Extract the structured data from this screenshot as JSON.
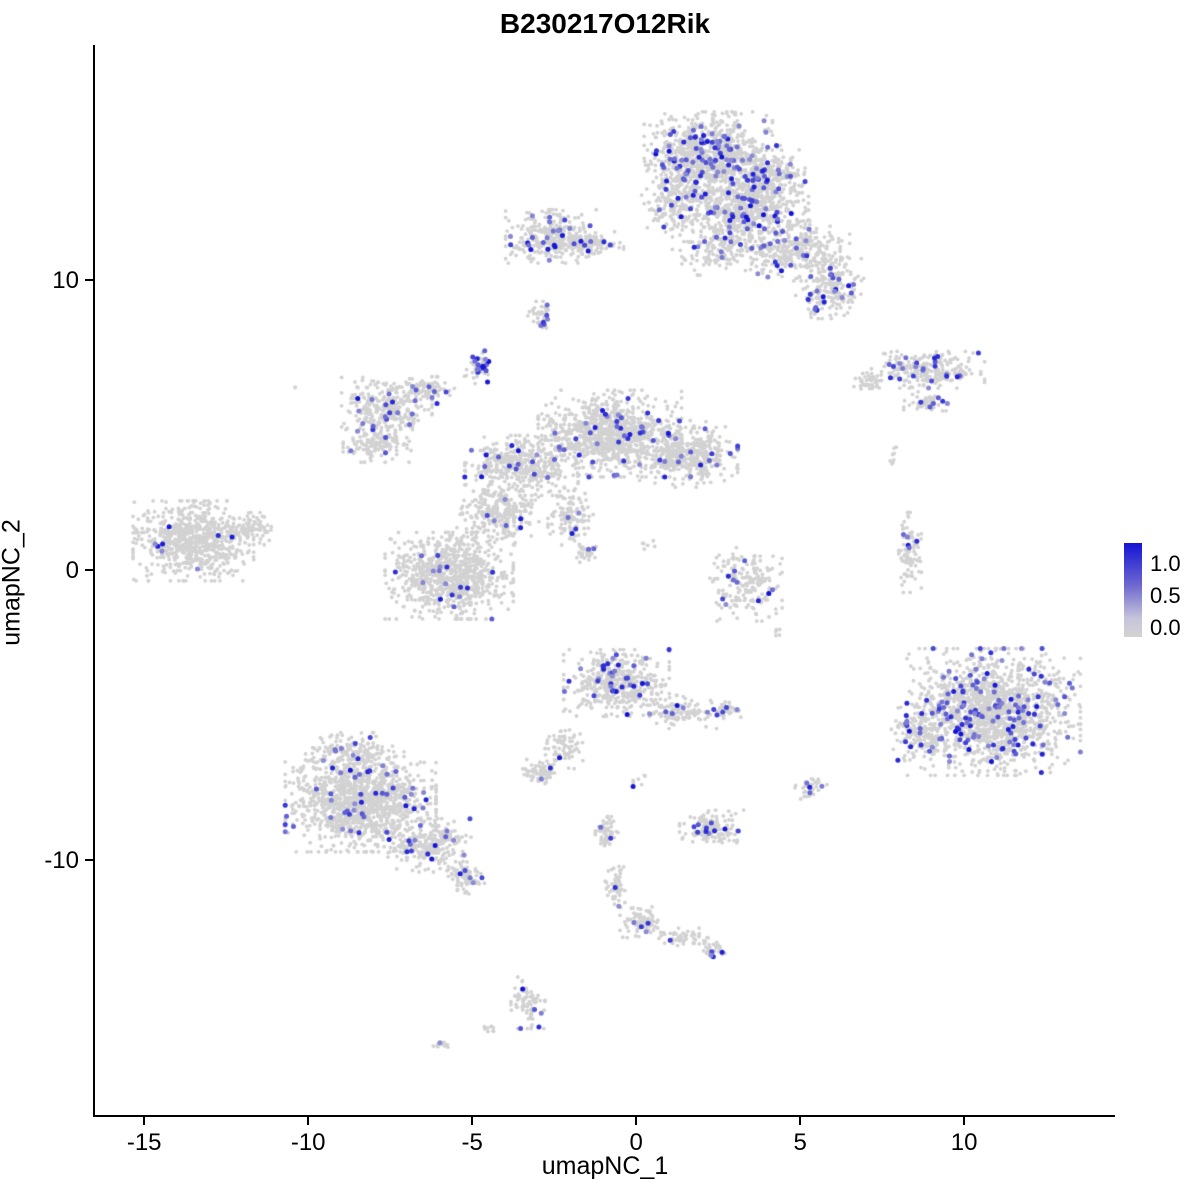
{
  "chart_data": {
    "type": "scatter",
    "title": "B230217O12Rik",
    "xlabel": "umapNC_1",
    "ylabel": "umapNC_2",
    "xlim": [
      -16.5,
      14.6
    ],
    "ylim": [
      -18.8,
      18.1
    ],
    "x_ticks": [
      -15,
      -10,
      -5,
      0,
      5,
      10
    ],
    "y_ticks": [
      -10,
      0,
      10
    ],
    "grid": false,
    "legend": {
      "position": "right",
      "ticks": [
        "1.0",
        "0.5",
        "0.0"
      ],
      "low_color": "#d3d3d3",
      "high_color": "#1010d6"
    },
    "point_color_low": "#d2d2d2",
    "point_color_high": "#1010d6",
    "clusters": [
      {
        "x": 2.2,
        "y": 14.3,
        "rx": 1.7,
        "ry": 1.3,
        "n": 850,
        "f": 0.1
      },
      {
        "x": 3.3,
        "y": 12.4,
        "rx": 1.7,
        "ry": 1.2,
        "n": 650,
        "f": 0.07
      },
      {
        "x": 1.2,
        "y": 12.8,
        "rx": 0.9,
        "ry": 1.0,
        "n": 220,
        "f": 0.04
      },
      {
        "x": 4.0,
        "y": 13.6,
        "rx": 1.0,
        "ry": 0.9,
        "n": 250,
        "f": 0.1
      },
      {
        "x": 4.9,
        "y": 11.0,
        "rx": 1.4,
        "ry": 0.9,
        "n": 320,
        "f": 0.06
      },
      {
        "x": 5.9,
        "y": 9.7,
        "rx": 0.9,
        "ry": 0.9,
        "n": 200,
        "f": 0.1
      },
      {
        "x": 2.6,
        "y": 10.9,
        "rx": 1.3,
        "ry": 0.8,
        "n": 130,
        "f": 0.05
      },
      {
        "x": -2.6,
        "y": 11.5,
        "rx": 1.2,
        "ry": 0.8,
        "n": 340,
        "f": 0.07
      },
      {
        "x": -1.3,
        "y": 11.2,
        "rx": 0.8,
        "ry": 0.4,
        "n": 90,
        "f": 0.05
      },
      {
        "x": -2.9,
        "y": 8.8,
        "rx": 0.35,
        "ry": 0.4,
        "n": 40,
        "f": 0.15
      },
      {
        "x": -4.8,
        "y": 7.0,
        "rx": 0.4,
        "ry": 0.5,
        "n": 55,
        "f": 0.3
      },
      {
        "x": -7.6,
        "y": 5.6,
        "rx": 1.2,
        "ry": 0.9,
        "n": 300,
        "f": 0.05
      },
      {
        "x": -6.3,
        "y": 6.2,
        "rx": 0.7,
        "ry": 0.4,
        "n": 70,
        "f": 0.12
      },
      {
        "x": -7.9,
        "y": 4.4,
        "rx": 0.9,
        "ry": 0.6,
        "n": 140,
        "f": 0.03
      },
      {
        "x": -0.8,
        "y": 4.7,
        "rx": 1.9,
        "ry": 1.3,
        "n": 950,
        "f": 0.035
      },
      {
        "x": 1.6,
        "y": 4.0,
        "rx": 1.3,
        "ry": 1.0,
        "n": 420,
        "f": 0.05
      },
      {
        "x": -3.5,
        "y": 3.6,
        "rx": 1.5,
        "ry": 0.9,
        "n": 420,
        "f": 0.04
      },
      {
        "x": -4.2,
        "y": 1.9,
        "rx": 1.1,
        "ry": 0.9,
        "n": 280,
        "f": 0.02
      },
      {
        "x": -5.7,
        "y": -0.2,
        "rx": 1.7,
        "ry": 1.3,
        "n": 850,
        "f": 0.02
      },
      {
        "x": -2.0,
        "y": 1.9,
        "rx": 0.6,
        "ry": 1.0,
        "n": 130,
        "f": 0.03
      },
      {
        "x": -1.5,
        "y": 0.6,
        "rx": 0.3,
        "ry": 0.3,
        "n": 35,
        "f": 0.06
      },
      {
        "x": -13.5,
        "y": 1.0,
        "rx": 1.6,
        "ry": 1.2,
        "n": 750,
        "f": 0.01
      },
      {
        "x": -11.8,
        "y": 1.4,
        "rx": 0.7,
        "ry": 0.5,
        "n": 90,
        "f": 0.0
      },
      {
        "x": 3.3,
        "y": -0.5,
        "rx": 1.0,
        "ry": 1.1,
        "n": 190,
        "f": 0.05
      },
      {
        "x": 8.35,
        "y": 0.6,
        "rx": 0.3,
        "ry": 1.2,
        "n": 90,
        "f": 0.05
      },
      {
        "x": 8.9,
        "y": 6.9,
        "rx": 1.5,
        "ry": 0.55,
        "n": 230,
        "f": 0.1
      },
      {
        "x": 8.8,
        "y": 5.8,
        "rx": 0.6,
        "ry": 0.3,
        "n": 55,
        "f": 0.1
      },
      {
        "x": 7.1,
        "y": 6.5,
        "rx": 0.4,
        "ry": 0.3,
        "n": 40,
        "f": 0.0
      },
      {
        "x": 10.9,
        "y": -4.9,
        "rx": 2.3,
        "ry": 1.9,
        "n": 1500,
        "f": 0.09
      },
      {
        "x": 8.7,
        "y": -5.6,
        "rx": 0.8,
        "ry": 1.1,
        "n": 170,
        "f": 0.07
      },
      {
        "x": -8.4,
        "y": -8.0,
        "rx": 2.0,
        "ry": 1.5,
        "n": 1300,
        "f": 0.035
      },
      {
        "x": -6.3,
        "y": -9.5,
        "rx": 1.1,
        "ry": 0.8,
        "n": 260,
        "f": 0.05
      },
      {
        "x": -5.2,
        "y": -10.6,
        "rx": 0.5,
        "ry": 0.5,
        "n": 80,
        "f": 0.06
      },
      {
        "x": -8.7,
        "y": -6.3,
        "rx": 1.2,
        "ry": 0.6,
        "n": 160,
        "f": 0.05
      },
      {
        "x": -0.6,
        "y": -3.9,
        "rx": 1.4,
        "ry": 1.0,
        "n": 480,
        "f": 0.07
      },
      {
        "x": 1.3,
        "y": -4.9,
        "rx": 1.0,
        "ry": 0.5,
        "n": 120,
        "f": 0.05
      },
      {
        "x": -2.2,
        "y": -6.1,
        "rx": 0.5,
        "ry": 0.7,
        "n": 70,
        "f": 0.02
      },
      {
        "x": -2.9,
        "y": -7.0,
        "rx": 0.5,
        "ry": 0.4,
        "n": 75,
        "f": 0.03
      },
      {
        "x": 2.7,
        "y": -4.8,
        "rx": 0.55,
        "ry": 0.3,
        "n": 45,
        "f": 0.1
      },
      {
        "x": 5.3,
        "y": -7.5,
        "rx": 0.45,
        "ry": 0.35,
        "n": 40,
        "f": 0.1
      },
      {
        "x": 2.3,
        "y": -8.9,
        "rx": 0.85,
        "ry": 0.55,
        "n": 140,
        "f": 0.07
      },
      {
        "x": -0.9,
        "y": -9.0,
        "rx": 0.3,
        "ry": 0.5,
        "n": 55,
        "f": 0.04
      },
      {
        "x": -0.6,
        "y": -10.9,
        "rx": 0.3,
        "ry": 0.8,
        "n": 55,
        "f": 0.04
      },
      {
        "x": 0.2,
        "y": -12.2,
        "rx": 0.6,
        "ry": 0.5,
        "n": 90,
        "f": 0.04
      },
      {
        "x": 1.5,
        "y": -12.7,
        "rx": 0.7,
        "ry": 0.3,
        "n": 55,
        "f": 0.02
      },
      {
        "x": 2.4,
        "y": -13.1,
        "rx": 0.3,
        "ry": 0.25,
        "n": 30,
        "f": 0.12
      },
      {
        "x": -3.3,
        "y": -14.9,
        "rx": 0.45,
        "ry": 0.8,
        "n": 80,
        "f": 0.06
      },
      {
        "x": -4.4,
        "y": -15.8,
        "rx": 0.2,
        "ry": 0.15,
        "n": 10,
        "f": 0.0
      },
      {
        "x": -5.9,
        "y": -16.4,
        "rx": 0.3,
        "ry": 0.15,
        "n": 12,
        "f": 0.1
      },
      {
        "x": -10.4,
        "y": 6.3,
        "rx": 0.1,
        "ry": 0.1,
        "n": 2,
        "f": 0.0
      },
      {
        "x": 0.4,
        "y": 0.9,
        "rx": 0.3,
        "ry": 0.3,
        "n": 6,
        "f": 0.0
      },
      {
        "x": 4.3,
        "y": -2.2,
        "rx": 0.2,
        "ry": 0.2,
        "n": 5,
        "f": 0.0
      },
      {
        "x": 7.9,
        "y": 3.9,
        "rx": 0.3,
        "ry": 0.3,
        "n": 8,
        "f": 0.0
      },
      {
        "x": 0.0,
        "y": -7.3,
        "rx": 0.3,
        "ry": 0.3,
        "n": 8,
        "f": 0.1
      }
    ]
  }
}
